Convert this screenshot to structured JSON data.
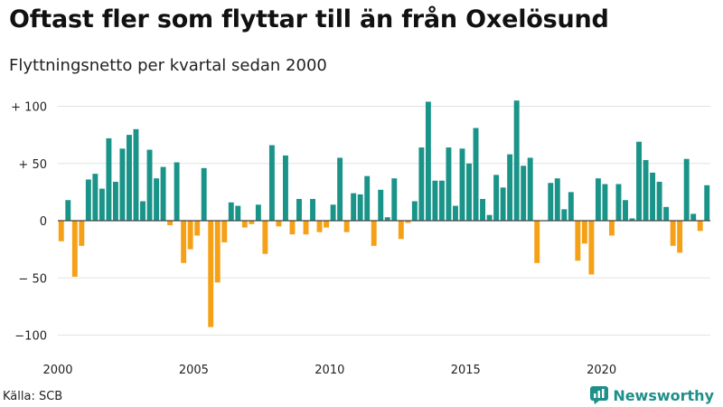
{
  "title": "Oftast fler som flyttar till än från Oxelösund",
  "subtitle": "Flyttningsnetto per kvartal sedan 2000",
  "source": "Källa: SCB",
  "brand": {
    "name": "Newsworthy",
    "icon": "newsworthy-logo-icon"
  },
  "colors": {
    "positive": "#1a9488",
    "negative": "#f5a118",
    "grid": "#e3e3e3",
    "zero_line": "#444444"
  },
  "chart_data": {
    "type": "bar",
    "title": "Oftast fler som flyttar till än från Oxelösund",
    "subtitle": "Flyttningsnetto per kvartal sedan 2000",
    "xlabel": "",
    "ylabel": "",
    "x_start": 2000,
    "periods_per_year": 4,
    "ylim": [
      -110,
      110
    ],
    "yticks": [
      100,
      50,
      0,
      -50,
      -100
    ],
    "ytick_labels": [
      "+ 100",
      "+  50",
      "0",
      "− 50",
      "−100"
    ],
    "xticks": [
      2000,
      2005,
      2010,
      2015,
      2020
    ],
    "xtick_labels": [
      "2000",
      "2005",
      "2010",
      "2015",
      "2020"
    ],
    "grid": true,
    "values": [
      -18,
      18,
      -49,
      -22,
      36,
      41,
      28,
      72,
      34,
      63,
      75,
      80,
      17,
      62,
      37,
      47,
      -4,
      51,
      -37,
      -25,
      -13,
      46,
      -93,
      -54,
      -19,
      16,
      13,
      -6,
      -3,
      14,
      -29,
      66,
      -5,
      57,
      -12,
      19,
      -12,
      19,
      -10,
      -6,
      14,
      55,
      -10,
      24,
      23,
      39,
      -22,
      27,
      3,
      37,
      -16,
      -2,
      17,
      64,
      104,
      35,
      35,
      64,
      13,
      63,
      50,
      81,
      19,
      5,
      40,
      29,
      58,
      105,
      48,
      55,
      -37,
      0,
      33,
      37,
      10,
      25,
      -35,
      -20,
      -47,
      37,
      32,
      -13,
      32,
      18,
      2,
      69,
      53,
      42,
      34,
      12,
      -22,
      -28,
      54,
      6,
      -9,
      31
    ]
  }
}
